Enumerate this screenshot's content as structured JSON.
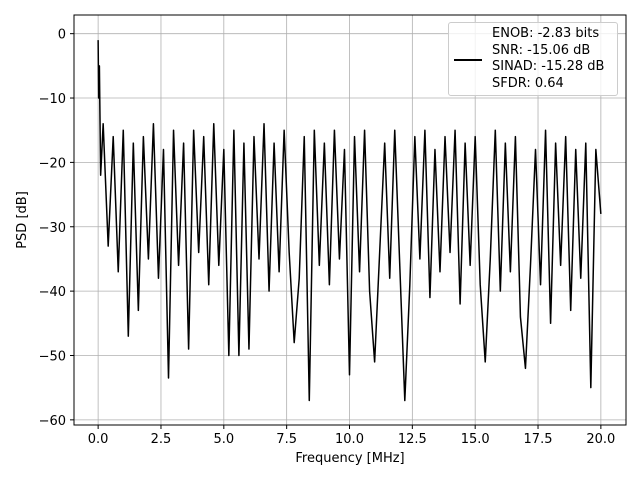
{
  "chart_data": {
    "type": "line",
    "xlabel": "Frequency [MHz]",
    "ylabel": "PSD [dB]",
    "xlim": [
      -0.96,
      21.0
    ],
    "ylim": [
      -60.8,
      2.9
    ],
    "xticks": [
      {
        "value": 0,
        "label": "0.0"
      },
      2.5,
      {
        "value": 5,
        "label": "5.0"
      },
      7.5,
      {
        "value": 10,
        "label": "10.0"
      },
      12.5,
      {
        "value": 15,
        "label": "15.0"
      },
      17.5,
      {
        "value": 20,
        "label": "20.0"
      }
    ],
    "yticks": [
      0,
      {
        "value": -10,
        "label": "−10"
      },
      {
        "value": -20,
        "label": "−20"
      },
      {
        "value": -30,
        "label": "−30"
      },
      {
        "value": -40,
        "label": "−40"
      },
      {
        "value": -50,
        "label": "−50"
      },
      {
        "value": -60,
        "label": "−60"
      }
    ],
    "grid": true,
    "legend": "upper right",
    "x": [
      0,
      0.02,
      0.05,
      0.1,
      0.2,
      0.4,
      0.6,
      0.8,
      1.0,
      1.2,
      1.4,
      1.6,
      1.8,
      2.0,
      2.2,
      2.4,
      2.6,
      2.8,
      3.0,
      3.2,
      3.4,
      3.6,
      3.8,
      4.0,
      4.2,
      4.4,
      4.6,
      4.8,
      5.0,
      5.2,
      5.4,
      5.6,
      5.8,
      6.0,
      6.2,
      6.4,
      6.6,
      6.8,
      7.0,
      7.2,
      7.4,
      7.6,
      7.8,
      8.0,
      8.2,
      8.4,
      8.6,
      8.8,
      9.0,
      9.2,
      9.4,
      9.6,
      9.8,
      10.0,
      10.2,
      10.4,
      10.6,
      10.8,
      11.0,
      11.2,
      11.4,
      11.6,
      11.8,
      12.0,
      12.2,
      12.4,
      12.6,
      12.8,
      13.0,
      13.2,
      13.4,
      13.6,
      13.8,
      14.0,
      14.2,
      14.4,
      14.6,
      14.8,
      15.0,
      15.2,
      15.4,
      15.6,
      15.8,
      16.0,
      16.2,
      16.4,
      16.6,
      16.8,
      17.0,
      17.2,
      17.4,
      17.6,
      17.8,
      18.0,
      18.2,
      18.4,
      18.6,
      18.8,
      19.0,
      19.2,
      19.4,
      19.6,
      19.8,
      20.0
    ],
    "series": [
      {
        "name": "ENOB: -2.83 bits\nSNR: -15.06 dB\nSINAD: -15.28 dB\nSFDR: 0.64",
        "color": "#000000",
        "values": [
          -1,
          -10,
          -5,
          -22,
          -14,
          -33,
          -16,
          -37,
          -15,
          -47,
          -17,
          -43,
          -16,
          -35,
          -14,
          -38,
          -18,
          -53.5,
          -15,
          -36,
          -17,
          -49,
          -15,
          -34,
          -16,
          -39,
          -14,
          -36,
          -18,
          -50,
          -15,
          -50,
          -17,
          -49,
          -16,
          -35,
          -14,
          -40,
          -17,
          -37,
          -15,
          -34,
          -48,
          -38,
          -16,
          -57,
          -15,
          -36,
          -17,
          -39,
          -15,
          -35,
          -18,
          -53,
          -16,
          -37,
          -15,
          -40,
          -51,
          -34,
          -17,
          -38,
          -15,
          -36,
          -57,
          -39,
          -16,
          -35,
          -15,
          -41,
          -18,
          -37,
          -16,
          -34,
          -15,
          -42,
          -17,
          -36,
          -16,
          -39,
          -51,
          -35,
          -15,
          -40,
          -17,
          -37,
          -16,
          -44,
          -52,
          -36,
          -18,
          -39,
          -15,
          -45,
          -17,
          -36,
          -16,
          -43,
          -18,
          -38,
          -17,
          -55,
          -18,
          -28
        ]
      }
    ]
  }
}
